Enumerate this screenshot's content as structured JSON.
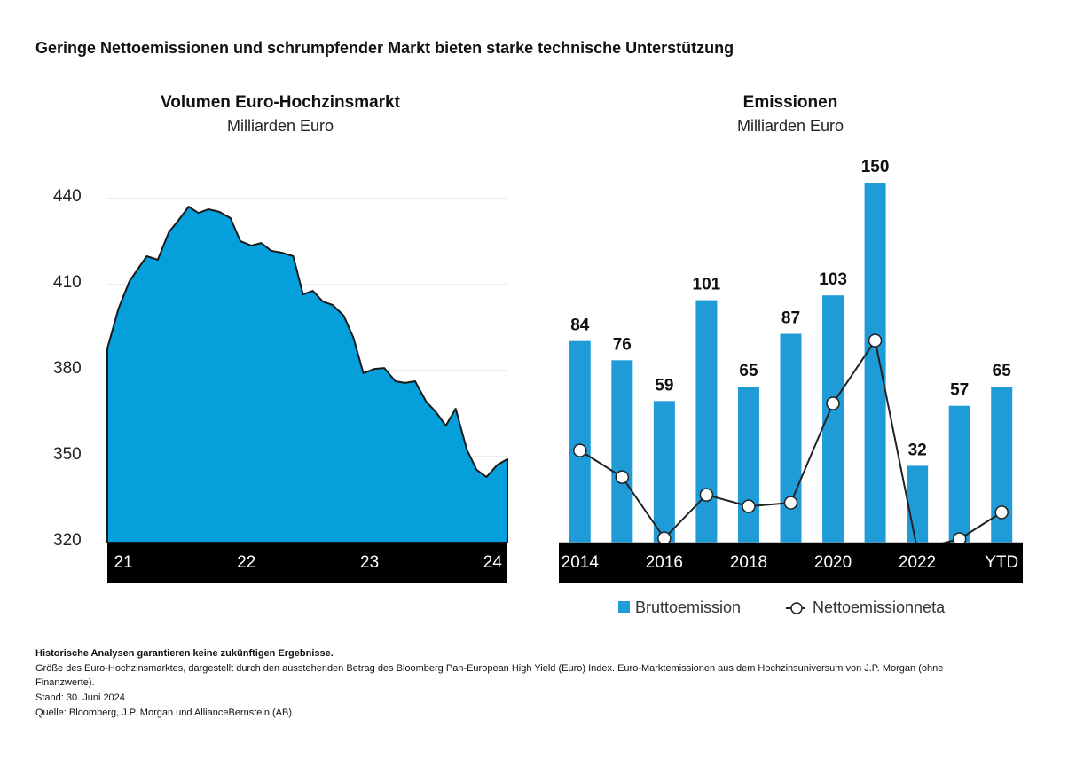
{
  "title": "Geringe Nettoemissionen und schrumpfender Markt bieten starke technische Unterstützung",
  "notes": [
    "Historische Analysen garantieren keine zukünftigen Ergebnisse.",
    "Größe des Euro-Hochzinsmarktes, dargestellt durch den ausstehenden Betrag des Bloomberg Pan-European High Yield (Euro) Index. Euro-Marktemissionen aus dem Hochzinsuniversum von J.P. Morgan (ohne",
    "Finanzwerte).",
    "Stand: 30. Juni 2024",
    "Quelle: Bloomberg, J.P. Morgan und AllianceBernstein (AB)"
  ],
  "chart_data": [
    {
      "type": "area",
      "title": "Volumen Euro-Hochzinsmarkt",
      "subtitle": "Milliarden Euro",
      "color": "#059fdc",
      "grid": true,
      "x": [
        20.87,
        20.96,
        21.05,
        21.19,
        21.28,
        21.37,
        21.44,
        21.53,
        21.61,
        21.69,
        21.78,
        21.87,
        21.95,
        22.04,
        22.12,
        22.2,
        22.29,
        22.38,
        22.46,
        22.54,
        22.62,
        22.7,
        22.79,
        22.87,
        22.95,
        23.04,
        23.12,
        23.21,
        23.29,
        23.37,
        23.46,
        23.54,
        23.62,
        23.7,
        23.79,
        23.87,
        23.95,
        24.04,
        24.12
      ],
      "values": [
        387.7,
        401.6,
        411.2,
        419.9,
        418.7,
        428.3,
        432,
        437.2,
        435,
        436.3,
        435.4,
        433.2,
        425.2,
        423.6,
        424.5,
        421.8,
        421.1,
        419.9,
        406.6,
        407.8,
        404.1,
        402.9,
        399.2,
        391.4,
        379.1,
        380.6,
        380.9,
        376.3,
        375.7,
        376.3,
        369.2,
        365.5,
        360.8,
        366.7,
        352.5,
        345.4,
        342.9,
        347.2,
        349.1
      ],
      "xlim": [
        20.87,
        24.12
      ],
      "xticks": [
        21,
        22,
        23,
        24
      ],
      "ylim": [
        320,
        440
      ],
      "yticks": [
        320,
        350,
        380,
        410,
        440
      ]
    },
    {
      "type": "bar",
      "title": "Emissionen",
      "subtitle": "Milliarden Euro",
      "categories": [
        "2014",
        null,
        "2016",
        null,
        "2018",
        null,
        "2020",
        null,
        "2022",
        null,
        "YTD"
      ],
      "ylim": [
        0,
        150
      ],
      "series": [
        {
          "name": "Bruttoemission",
          "type": "bar",
          "color": "#1f9bd7",
          "values": [
            84,
            76,
            59,
            101,
            65,
            87,
            103,
            150,
            32,
            57,
            65
          ]
        },
        {
          "name": "Nettoemissionneta",
          "type": "line",
          "color": "#222222",
          "values": [
            38.4,
            27.3,
            1.8,
            19.9,
            15.1,
            16.6,
            58,
            84.2,
            -3,
            1.5,
            12.6
          ]
        }
      ]
    }
  ]
}
